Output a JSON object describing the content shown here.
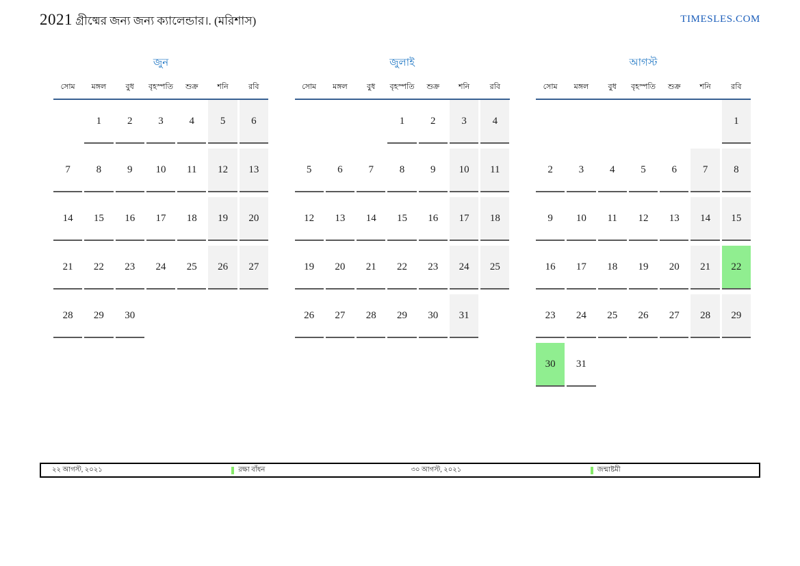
{
  "header": {
    "title_year": "2021",
    "title_text": "গ্রীষ্মের জন্য জন্য ক্যালেন্ডার।. (মরিশাস)",
    "brand": "TIMESLES.COM"
  },
  "weekdays": [
    "সোম",
    "মঙ্গল",
    "বুধ",
    "বৃহস্পতি",
    "শুক্র",
    "শনি",
    "রবি"
  ],
  "weekend_columns": [
    5,
    6
  ],
  "months": [
    {
      "name": "জুন",
      "weeks": [
        [
          null,
          1,
          2,
          3,
          4,
          5,
          6
        ],
        [
          7,
          8,
          9,
          10,
          11,
          12,
          13
        ],
        [
          14,
          15,
          16,
          17,
          18,
          19,
          20
        ],
        [
          21,
          22,
          23,
          24,
          25,
          26,
          27
        ],
        [
          28,
          29,
          30,
          null,
          null,
          null,
          null
        ]
      ],
      "holidays": []
    },
    {
      "name": "জুলাই",
      "weeks": [
        [
          null,
          null,
          null,
          1,
          2,
          3,
          4
        ],
        [
          5,
          6,
          7,
          8,
          9,
          10,
          11
        ],
        [
          12,
          13,
          14,
          15,
          16,
          17,
          18
        ],
        [
          19,
          20,
          21,
          22,
          23,
          24,
          25
        ],
        [
          26,
          27,
          28,
          29,
          30,
          31,
          null
        ]
      ],
      "holidays": []
    },
    {
      "name": "আগস্ট",
      "weeks": [
        [
          null,
          null,
          null,
          null,
          null,
          null,
          1
        ],
        [
          2,
          3,
          4,
          5,
          6,
          7,
          8
        ],
        [
          9,
          10,
          11,
          12,
          13,
          14,
          15
        ],
        [
          16,
          17,
          18,
          19,
          20,
          21,
          22
        ],
        [
          23,
          24,
          25,
          26,
          27,
          28,
          29
        ],
        [
          30,
          31,
          null,
          null,
          null,
          null,
          null
        ]
      ],
      "holidays": [
        22,
        30
      ]
    }
  ],
  "legend": [
    {
      "date": "২২ আগস্ট, ২০২১",
      "label": "রক্ষা বাঁধন"
    },
    {
      "date": "৩০ আগস্ট, ২০২১",
      "label": "জন্মাষ্টমী"
    }
  ],
  "colors": {
    "month_title": "#2077c4",
    "brand": "#1a5dba",
    "header_rule": "#365f91",
    "cell_rule": "#595959",
    "weekend_bg": "#f2f2f2",
    "holiday_bg": "#90ee90",
    "legend_marker": "#85ea68"
  }
}
